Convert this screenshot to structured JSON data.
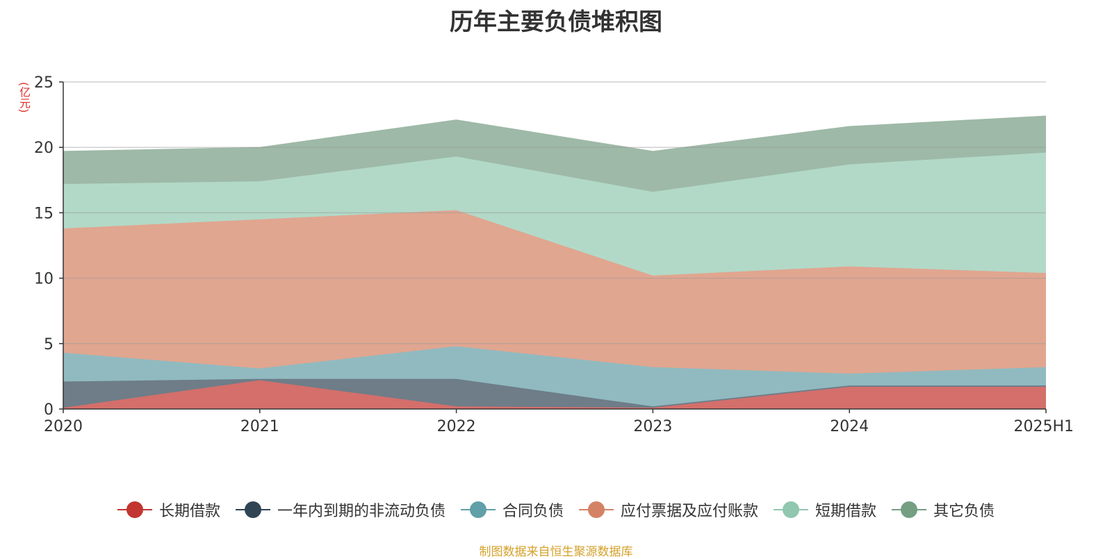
{
  "title": "历年主要负债堆积图",
  "unit": "(亿元)",
  "source": "制图数据来自恒生聚源数据库",
  "chart_data": {
    "type": "area",
    "stacked": true,
    "categories": [
      "2020",
      "2021",
      "2022",
      "2023",
      "2024",
      "2025H1"
    ],
    "ylim": [
      0,
      25
    ],
    "yticks": [
      "0",
      "5",
      "10",
      "15",
      "20",
      "25"
    ],
    "grid": true,
    "legend_position": "bottom",
    "series": [
      {
        "name": "长期借款",
        "color": "#c23531",
        "fill": "#d46f6b",
        "values": [
          0.1,
          2.2,
          0.2,
          0.1,
          1.7,
          1.7
        ]
      },
      {
        "name": "一年内到期的非流动负债",
        "color": "#2f4554",
        "fill": "#6e7d88",
        "values": [
          2.0,
          0.1,
          2.1,
          0.1,
          0.1,
          0.1
        ]
      },
      {
        "name": "合同负债",
        "color": "#61a0a8",
        "fill": "#90bac0",
        "values": [
          2.2,
          0.8,
          2.5,
          3.0,
          0.9,
          1.4
        ]
      },
      {
        "name": "应付票据及应付账款",
        "color": "#d48265",
        "fill": "#e0a690",
        "values": [
          9.5,
          11.4,
          10.4,
          7.0,
          8.2,
          7.2
        ]
      },
      {
        "name": "短期借款",
        "color": "#91c7ae",
        "fill": "#b2d9c7",
        "values": [
          3.4,
          2.9,
          4.1,
          6.4,
          7.8,
          9.2
        ]
      },
      {
        "name": "其它负债",
        "color": "#749f83",
        "fill": "#9eb9a7",
        "values": [
          2.5,
          2.6,
          2.8,
          3.1,
          2.9,
          2.8
        ]
      }
    ]
  }
}
